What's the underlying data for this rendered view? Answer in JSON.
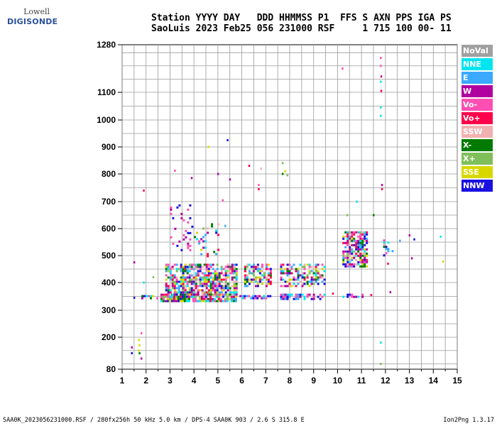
{
  "logo": {
    "top": "Lowell",
    "main": "DIGISONDE"
  },
  "header": {
    "line1": "Station YYYY DAY   DDD HHMMSS P1  FFS S AXN PPS IGA PS",
    "line2": "SaoLuis 2023 Feb25 056 231000 RSF     1 715 100 00- 11"
  },
  "legend": [
    {
      "label": "NoVal",
      "color": "#a0a0a0"
    },
    {
      "label": "NNE",
      "color": "#00e5f0"
    },
    {
      "label": "E",
      "color": "#3aa9ff"
    },
    {
      "label": "W",
      "color": "#b0009f"
    },
    {
      "label": "Vo-",
      "color": "#ff4fb3"
    },
    {
      "label": "Vo+",
      "color": "#ff0049"
    },
    {
      "label": "SSW",
      "color": "#f2b1b1"
    },
    {
      "label": "X-",
      "color": "#007a00"
    },
    {
      "label": "X+",
      "color": "#7fbf5a"
    },
    {
      "label": "SSE",
      "color": "#d8d800"
    },
    {
      "label": "NNW",
      "color": "#1a10e0"
    }
  ],
  "footer": {
    "left": "SAA0K_2023056231000.RSF / 280fx256h 50 kHz 5.0 km / DPS-4 SAA0K 903 / 2.6 S 315.8 E",
    "right": "Ion2Png 1.3.17"
  },
  "chart_data": {
    "type": "scatter",
    "xlim": [
      1,
      15
    ],
    "ylim": [
      80,
      1280
    ],
    "x_ticks": [
      1,
      2,
      3,
      4,
      5,
      6,
      7,
      8,
      9,
      10,
      11,
      12,
      13,
      14,
      15
    ],
    "y_tick_labels": [
      80,
      200,
      300,
      400,
      500,
      600,
      700,
      800,
      900,
      1000,
      1100,
      1280
    ],
    "grid": true,
    "legend_position": "right",
    "clusters": [
      {
        "x": [
          1.8,
          2.5
        ],
        "y": [
          335,
          355
        ],
        "density": 0.55,
        "palette": "low"
      },
      {
        "x": [
          2.6,
          5.8
        ],
        "y": [
          330,
          360
        ],
        "density": 0.9,
        "palette": "low"
      },
      {
        "x": [
          2.8,
          5.8
        ],
        "y": [
          360,
          470
        ],
        "density": 0.7,
        "palette": "mix"
      },
      {
        "x": [
          5.9,
          7.2
        ],
        "y": [
          340,
          355
        ],
        "density": 0.8,
        "palette": "blue"
      },
      {
        "x": [
          6.1,
          7.2
        ],
        "y": [
          390,
          470
        ],
        "density": 0.6,
        "palette": "mix"
      },
      {
        "x": [
          7.6,
          8.6
        ],
        "y": [
          340,
          360
        ],
        "density": 0.8,
        "palette": "blue"
      },
      {
        "x": [
          7.6,
          8.6
        ],
        "y": [
          390,
          470
        ],
        "density": 0.55,
        "palette": "mix"
      },
      {
        "x": [
          8.7,
          9.5
        ],
        "y": [
          340,
          360
        ],
        "density": 0.7,
        "palette": "blue"
      },
      {
        "x": [
          8.7,
          9.5
        ],
        "y": [
          385,
          470
        ],
        "density": 0.5,
        "palette": "mix"
      },
      {
        "x": [
          10.2,
          11.1
        ],
        "y": [
          345,
          360
        ],
        "density": 0.35,
        "palette": "blue"
      },
      {
        "x": [
          10.2,
          11.2
        ],
        "y": [
          460,
          590
        ],
        "density": 0.7,
        "palette": "mix"
      },
      {
        "x": [
          11.9,
          12.3
        ],
        "y": [
          500,
          560
        ],
        "density": 0.3,
        "palette": "mix"
      },
      {
        "x": [
          3.0,
          3.9
        ],
        "y": [
          520,
          690
        ],
        "density": 0.12,
        "palette": "w"
      },
      {
        "x": [
          4.0,
          5.1
        ],
        "y": [
          500,
          620
        ],
        "density": 0.12,
        "palette": "mix"
      }
    ],
    "isolated_points": [
      {
        "x": 1.7,
        "y": 190,
        "series": "SSE"
      },
      {
        "x": 1.72,
        "y": 170,
        "series": "SSE"
      },
      {
        "x": 1.7,
        "y": 150,
        "series": "SSE"
      },
      {
        "x": 1.72,
        "y": 140,
        "series": "X-"
      },
      {
        "x": 1.8,
        "y": 120,
        "series": "W"
      },
      {
        "x": 1.8,
        "y": 215,
        "series": "Vo-"
      },
      {
        "x": 1.4,
        "y": 140,
        "series": "NNW"
      },
      {
        "x": 1.4,
        "y": 162,
        "series": "W"
      },
      {
        "x": 1.5,
        "y": 475,
        "series": "W"
      },
      {
        "x": 1.9,
        "y": 740,
        "series": "Vo+"
      },
      {
        "x": 3.2,
        "y": 812,
        "series": "Vo-"
      },
      {
        "x": 3.9,
        "y": 785,
        "series": "W"
      },
      {
        "x": 4.6,
        "y": 900,
        "series": "SSE"
      },
      {
        "x": 5.0,
        "y": 800,
        "series": "W"
      },
      {
        "x": 5.4,
        "y": 925,
        "series": "NNW"
      },
      {
        "x": 5.5,
        "y": 780,
        "series": "W"
      },
      {
        "x": 5.2,
        "y": 705,
        "series": "Vo-"
      },
      {
        "x": 6.3,
        "y": 830,
        "series": "Vo+"
      },
      {
        "x": 6.7,
        "y": 760,
        "series": "Vo-"
      },
      {
        "x": 6.7,
        "y": 745,
        "series": "Vo+"
      },
      {
        "x": 6.8,
        "y": 820,
        "series": "SSW"
      },
      {
        "x": 7.7,
        "y": 840,
        "series": "X+"
      },
      {
        "x": 7.8,
        "y": 810,
        "series": "SSE"
      },
      {
        "x": 7.9,
        "y": 795,
        "series": "X+"
      },
      {
        "x": 7.7,
        "y": 800,
        "series": "X-"
      },
      {
        "x": 10.2,
        "y": 1190,
        "series": "Vo-"
      },
      {
        "x": 11.8,
        "y": 1230,
        "series": "Vo-"
      },
      {
        "x": 11.8,
        "y": 1200,
        "series": "Vo-"
      },
      {
        "x": 11.82,
        "y": 1160,
        "series": "W"
      },
      {
        "x": 11.8,
        "y": 1140,
        "series": "NNE"
      },
      {
        "x": 11.82,
        "y": 1105,
        "series": "Vo+"
      },
      {
        "x": 11.8,
        "y": 1045,
        "series": "NNE"
      },
      {
        "x": 11.8,
        "y": 1015,
        "series": "NNE"
      },
      {
        "x": 11.85,
        "y": 760,
        "series": "W"
      },
      {
        "x": 11.85,
        "y": 745,
        "series": "Vo+"
      },
      {
        "x": 11.8,
        "y": 180,
        "series": "NNE"
      },
      {
        "x": 11.8,
        "y": 100,
        "series": "X+"
      },
      {
        "x": 12.2,
        "y": 365,
        "series": "W"
      },
      {
        "x": 12.1,
        "y": 470,
        "series": "Vo+"
      },
      {
        "x": 13.2,
        "y": 560,
        "series": "NNW"
      },
      {
        "x": 13.0,
        "y": 575,
        "series": "W"
      },
      {
        "x": 13.1,
        "y": 490,
        "series": "W"
      },
      {
        "x": 14.3,
        "y": 570,
        "series": "NNE"
      },
      {
        "x": 14.4,
        "y": 478,
        "series": "SSE"
      },
      {
        "x": 12.6,
        "y": 555,
        "series": "E"
      },
      {
        "x": 1.5,
        "y": 345,
        "series": "NNW"
      },
      {
        "x": 1.9,
        "y": 400,
        "series": "NNE"
      },
      {
        "x": 2.3,
        "y": 420,
        "series": "X+"
      },
      {
        "x": 5.3,
        "y": 610,
        "series": "E"
      },
      {
        "x": 9.8,
        "y": 360,
        "series": "Vo+"
      },
      {
        "x": 11.4,
        "y": 355,
        "series": "Vo+"
      },
      {
        "x": 11.5,
        "y": 650,
        "series": "X-"
      },
      {
        "x": 10.8,
        "y": 700,
        "series": "NNE"
      },
      {
        "x": 10.4,
        "y": 650,
        "series": "X+"
      }
    ]
  }
}
